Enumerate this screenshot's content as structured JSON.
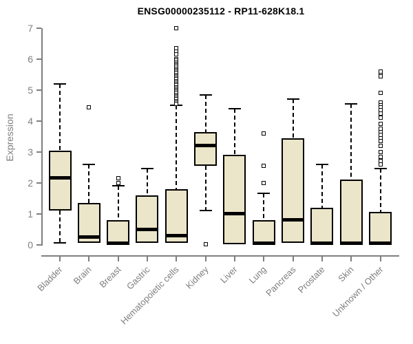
{
  "chart_data": {
    "type": "boxplot",
    "title": "ENSG00000235112 - RP11-628K18.1",
    "ylabel": "Expression",
    "xlabel": "",
    "ylim": [
      0,
      7
    ],
    "yticks": [
      0,
      1,
      2,
      3,
      4,
      5,
      6,
      7
    ],
    "grid": false,
    "legend": null,
    "categories": [
      "Bladder",
      "Brain",
      "Breast",
      "Gastric",
      "Hematopoietic cells",
      "Kidney",
      "Liver",
      "Lung",
      "Pancreas",
      "Prostate",
      "Skin",
      "Unknown / Other"
    ],
    "series": [
      {
        "name": "Bladder",
        "whisker_low": 0.05,
        "q1": 1.1,
        "median": 2.15,
        "q3": 3.05,
        "whisker_high": 5.2,
        "outliers": []
      },
      {
        "name": "Brain",
        "whisker_low": 0.02,
        "q1": 0.05,
        "median": 0.25,
        "q3": 1.35,
        "whisker_high": 2.6,
        "outliers": [
          4.45
        ]
      },
      {
        "name": "Breast",
        "whisker_low": 0.02,
        "q1": 0.02,
        "median": 0.05,
        "q3": 0.78,
        "whisker_high": 1.9,
        "outliers": [
          2.15,
          2.0
        ]
      },
      {
        "name": "Gastric",
        "whisker_low": 0.02,
        "q1": 0.05,
        "median": 0.5,
        "q3": 1.6,
        "whisker_high": 2.45,
        "outliers": []
      },
      {
        "name": "Hematopoietic cells",
        "whisker_low": 0.02,
        "q1": 0.05,
        "median": 0.3,
        "q3": 1.8,
        "whisker_high": 4.5,
        "outliers": [
          7,
          6.35,
          6.25,
          6.15,
          6.0,
          5.95,
          5.9,
          5.85,
          5.8,
          5.75,
          5.7,
          5.65,
          5.6,
          5.55,
          5.5,
          5.45,
          5.4,
          5.35,
          5.3,
          5.25,
          5.2,
          5.15,
          5.1,
          5.05,
          5.0,
          4.95,
          4.9,
          4.85,
          4.8,
          4.75,
          4.7,
          4.65,
          4.6,
          4.55
        ]
      },
      {
        "name": "Kidney",
        "whisker_low": 1.1,
        "q1": 2.55,
        "median": 3.2,
        "q3": 3.65,
        "whisker_high": 4.85,
        "outliers": [
          0.02
        ]
      },
      {
        "name": "Liver",
        "whisker_low": 0.02,
        "q1": 0.02,
        "median": 1.0,
        "q3": 2.9,
        "whisker_high": 4.4,
        "outliers": []
      },
      {
        "name": "Lung",
        "whisker_low": 0.02,
        "q1": 0.02,
        "median": 0.05,
        "q3": 0.78,
        "whisker_high": 1.65,
        "outliers": [
          3.6,
          2.55,
          2.0
        ]
      },
      {
        "name": "Pancreas",
        "whisker_low": 0.05,
        "q1": 0.05,
        "median": 0.8,
        "q3": 3.45,
        "whisker_high": 4.7,
        "outliers": []
      },
      {
        "name": "Prostate",
        "whisker_low": 0.02,
        "q1": 0.02,
        "median": 0.05,
        "q3": 1.2,
        "whisker_high": 2.6,
        "outliers": []
      },
      {
        "name": "Skin",
        "whisker_low": 0.02,
        "q1": 0.02,
        "median": 0.05,
        "q3": 2.1,
        "whisker_high": 4.55,
        "outliers": []
      },
      {
        "name": "Unknown / Other",
        "whisker_low": 0.02,
        "q1": 0.02,
        "median": 0.05,
        "q3": 1.05,
        "whisker_high": 2.45,
        "outliers": [
          5.6,
          5.5,
          5.45,
          4.9,
          4.6,
          4.5,
          4.45,
          4.35,
          4.25,
          4.1,
          3.9,
          3.75,
          3.65,
          3.55,
          3.45,
          3.35,
          3.2,
          3.0,
          2.85,
          2.7,
          2.6
        ]
      }
    ],
    "colors": {
      "box_fill": "#ebe5c9",
      "box_border": "#000000",
      "median": "#000000",
      "whisker": "#000000",
      "outlier_border": "#000000",
      "axis": "#7e7e7e",
      "tick_label": "#7e7e7e",
      "title": "#000000"
    }
  }
}
